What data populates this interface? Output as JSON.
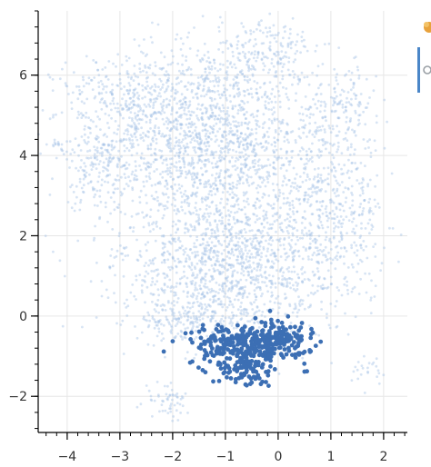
{
  "chart_data": {
    "type": "scatter",
    "title": "",
    "xlabel": "",
    "ylabel": "",
    "xlim": [
      -4.55,
      2.45
    ],
    "ylim": [
      -2.9,
      7.6
    ],
    "xticks": [
      -4,
      -3,
      -2,
      -1,
      0,
      1,
      2
    ],
    "yticks": [
      -2,
      0,
      2,
      4,
      6
    ],
    "xtick_labels": [
      "−4",
      "−3",
      "−2",
      "−1",
      "0",
      "1",
      "2"
    ],
    "ytick_labels": [
      "−2",
      "0",
      "2",
      "4",
      "6"
    ],
    "grid": true,
    "legend": "none",
    "series": [
      {
        "role": "background",
        "color": "#a6c4e6",
        "opacity": 0.45,
        "marker_size": 1.4,
        "clusters": [
          {
            "cx": -1.3,
            "cy": 4.3,
            "sx": 1.05,
            "sy": 1.25,
            "n": 1700
          },
          {
            "cx": -0.9,
            "cy": 1.2,
            "sx": 1.05,
            "sy": 0.85,
            "n": 1150
          },
          {
            "cx": 0.9,
            "cy": 2.6,
            "sx": 0.55,
            "sy": 1.1,
            "n": 500
          },
          {
            "cx": -2.6,
            "cy": 5.4,
            "sx": 0.8,
            "sy": 0.55,
            "n": 320
          },
          {
            "cx": -3.4,
            "cy": 3.7,
            "sx": 0.35,
            "sy": 0.55,
            "n": 160
          },
          {
            "cx": -1.6,
            "cy": -0.1,
            "sx": 0.6,
            "sy": 0.25,
            "n": 190
          },
          {
            "cx": -2.1,
            "cy": -2.1,
            "sx": 0.22,
            "sy": 0.25,
            "n": 55
          },
          {
            "cx": -0.2,
            "cy": 6.6,
            "sx": 0.45,
            "sy": 0.35,
            "n": 150
          },
          {
            "cx": 1.2,
            "cy": 5.3,
            "sx": 0.35,
            "sy": 0.45,
            "n": 130
          },
          {
            "cx": 1.8,
            "cy": -1.3,
            "sx": 0.18,
            "sy": 0.22,
            "n": 22
          },
          {
            "cx": -4.2,
            "cy": 4.3,
            "sx": 0.08,
            "sy": 0.06,
            "n": 12
          }
        ]
      },
      {
        "role": "highlight",
        "color": "#3c6fb4",
        "opacity": 1.0,
        "marker_size": 2.4,
        "clusters": [
          {
            "cx": -0.55,
            "cy": -0.7,
            "sx": 0.55,
            "sy": 0.25,
            "n": 330
          },
          {
            "cx": -0.65,
            "cy": -1.35,
            "sx": 0.25,
            "sy": 0.22,
            "n": 90
          },
          {
            "cx": 0.05,
            "cy": -0.5,
            "sx": 0.2,
            "sy": 0.15,
            "n": 70
          }
        ]
      }
    ]
  },
  "toolbar": {
    "logo_color": "#e8a23c",
    "active_tool_color": "#4a86c8",
    "icons": [
      "bokeh-logo-icon",
      "pan-tool-icon"
    ]
  }
}
